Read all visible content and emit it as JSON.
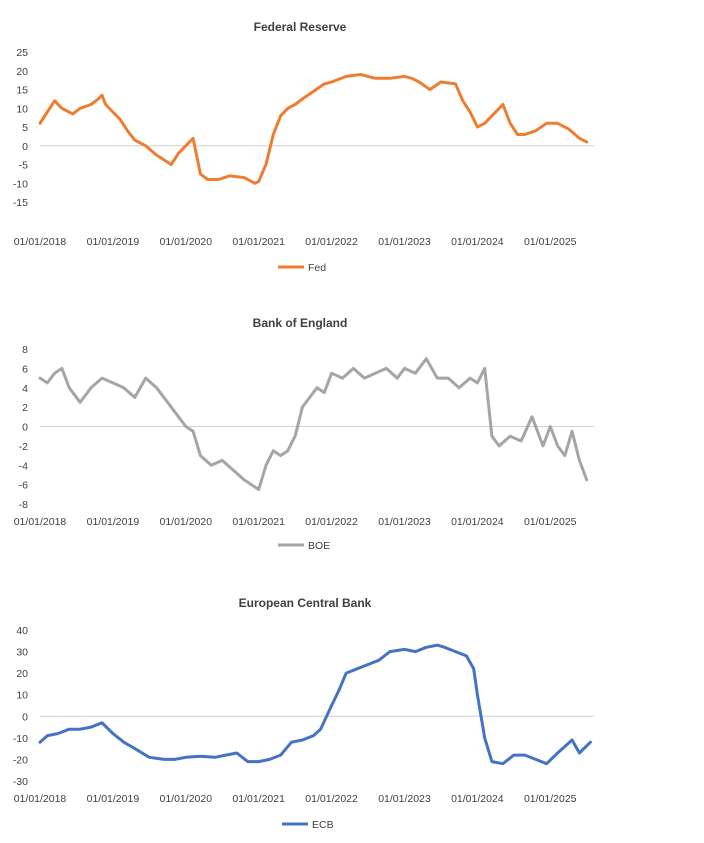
{
  "chart_data": [
    {
      "type": "line",
      "title": "Federal Reserve",
      "xlabel": "",
      "ylabel": "",
      "x_tick_labels": [
        "01/01/2018",
        "01/01/2019",
        "01/01/2020",
        "01/01/2021",
        "01/01/2022",
        "01/01/2023",
        "01/01/2024",
        "01/01/2025"
      ],
      "x_range": [
        2018.0,
        2025.6
      ],
      "ylim": [
        -15,
        25
      ],
      "y_ticks": [
        -15,
        -10,
        -5,
        0,
        5,
        10,
        15,
        20,
        25
      ],
      "grid": false,
      "legend": "bottom-center",
      "series": [
        {
          "name": "Fed",
          "color": "#ED7D31",
          "x": [
            2018.0,
            2018.1,
            2018.2,
            2018.3,
            2018.45,
            2018.55,
            2018.7,
            2018.8,
            2018.85,
            2018.9,
            2019.0,
            2019.1,
            2019.2,
            2019.3,
            2019.45,
            2019.6,
            2019.8,
            2019.9,
            2020.0,
            2020.05,
            2020.1,
            2020.2,
            2020.3,
            2020.45,
            2020.6,
            2020.8,
            2020.95,
            2021.0,
            2021.1,
            2021.2,
            2021.3,
            2021.4,
            2021.5,
            2021.6,
            2021.75,
            2021.9,
            2022.0,
            2022.2,
            2022.4,
            2022.6,
            2022.8,
            2023.0,
            2023.1,
            2023.2,
            2023.35,
            2023.5,
            2023.7,
            2023.8,
            2023.9,
            2024.0,
            2024.1,
            2024.2,
            2024.35,
            2024.45,
            2024.55,
            2024.65,
            2024.8,
            2024.95,
            2025.1,
            2025.25,
            2025.4,
            2025.5
          ],
          "y": [
            6,
            9,
            12,
            10,
            8.5,
            10,
            11,
            12.5,
            13.5,
            11,
            9,
            7,
            4,
            1.5,
            0,
            -2.5,
            -5,
            -2,
            0,
            1,
            2,
            -7.5,
            -9,
            -9,
            -8,
            -8.5,
            -10,
            -9.5,
            -5,
            3,
            8,
            10,
            11,
            12.5,
            14.5,
            16.5,
            17,
            18.5,
            19,
            18,
            18,
            18.5,
            18,
            17,
            15,
            17,
            16.5,
            12,
            9,
            5,
            6,
            8,
            11,
            6,
            3,
            3,
            4,
            6,
            6,
            4.5,
            2,
            1
          ]
        }
      ]
    },
    {
      "type": "line",
      "title": "Bank of England",
      "xlabel": "",
      "ylabel": "",
      "x_tick_labels": [
        "01/01/2018",
        "01/01/2019",
        "01/01/2020",
        "01/01/2021",
        "01/01/2022",
        "01/01/2023",
        "01/01/2024",
        "01/01/2025"
      ],
      "x_range": [
        2018.0,
        2025.6
      ],
      "ylim": [
        -8,
        8
      ],
      "y_ticks": [
        -8,
        -6,
        -4,
        -2,
        0,
        2,
        4,
        6,
        8
      ],
      "grid": false,
      "legend": "bottom-center",
      "series": [
        {
          "name": "BOE",
          "color": "#A5A5A5",
          "x": [
            2018.0,
            2018.1,
            2018.2,
            2018.3,
            2018.4,
            2018.55,
            2018.7,
            2018.85,
            2019.0,
            2019.15,
            2019.3,
            2019.45,
            2019.6,
            2019.75,
            2019.9,
            2020.0,
            2020.1,
            2020.2,
            2020.35,
            2020.5,
            2020.65,
            2020.8,
            2020.9,
            2021.0,
            2021.1,
            2021.2,
            2021.3,
            2021.4,
            2021.5,
            2021.6,
            2021.7,
            2021.8,
            2021.9,
            2022.0,
            2022.15,
            2022.3,
            2022.45,
            2022.6,
            2022.75,
            2022.9,
            2023.0,
            2023.15,
            2023.3,
            2023.45,
            2023.6,
            2023.75,
            2023.9,
            2024.0,
            2024.1,
            2024.2,
            2024.3,
            2024.45,
            2024.6,
            2024.75,
            2024.9,
            2025.0,
            2025.1,
            2025.2,
            2025.3,
            2025.4,
            2025.5
          ],
          "y": [
            5,
            4.5,
            5.5,
            6,
            4,
            2.5,
            4,
            5,
            4.5,
            4,
            3,
            5,
            4,
            2.5,
            1,
            0,
            -0.5,
            -3,
            -4,
            -3.5,
            -4.5,
            -5.5,
            -6,
            -6.5,
            -4,
            -2.5,
            -3,
            -2.5,
            -1,
            2,
            3,
            4,
            3.5,
            5.5,
            5,
            6,
            5,
            5.5,
            6,
            5,
            6,
            5.5,
            7,
            5,
            5,
            4,
            5,
            4.5,
            6,
            -1,
            -2,
            -1,
            -1.5,
            1,
            -2,
            0,
            -2,
            -3,
            -0.5,
            -3.5,
            -5.5
          ]
        }
      ]
    },
    {
      "type": "line",
      "title": "European Central Bank",
      "xlabel": "",
      "ylabel": "",
      "x_tick_labels": [
        "01/01/2018",
        "01/01/2019",
        "01/01/2020",
        "01/01/2021",
        "01/01/2022",
        "01/01/2023",
        "01/01/2024",
        "01/01/2025"
      ],
      "x_range": [
        2018.0,
        2025.6
      ],
      "ylim": [
        -30,
        40
      ],
      "y_ticks": [
        -30,
        -20,
        -10,
        0,
        10,
        20,
        30,
        40
      ],
      "grid": false,
      "legend": "bottom-center",
      "series": [
        {
          "name": "ECB",
          "color": "#4472C4",
          "x": [
            2018.0,
            2018.1,
            2018.25,
            2018.4,
            2018.55,
            2018.7,
            2018.85,
            2019.0,
            2019.15,
            2019.3,
            2019.5,
            2019.7,
            2019.85,
            2020.0,
            2020.2,
            2020.4,
            2020.55,
            2020.7,
            2020.85,
            2021.0,
            2021.15,
            2021.3,
            2021.45,
            2021.6,
            2021.75,
            2021.85,
            2022.0,
            2022.1,
            2022.2,
            2022.35,
            2022.5,
            2022.65,
            2022.8,
            2023.0,
            2023.15,
            2023.3,
            2023.45,
            2023.55,
            2023.7,
            2023.85,
            2023.95,
            2024.0,
            2024.1,
            2024.2,
            2024.35,
            2024.5,
            2024.65,
            2024.8,
            2024.95,
            2025.1,
            2025.2,
            2025.3,
            2025.4,
            2025.55
          ],
          "y": [
            -12,
            -9,
            -8,
            -6,
            -6,
            -5,
            -3,
            -8,
            -12,
            -15,
            -19,
            -20,
            -20,
            -19,
            -18.5,
            -19,
            -18,
            -17,
            -21,
            -21,
            -20,
            -18,
            -12,
            -11,
            -9,
            -6,
            5,
            12,
            20,
            22,
            24,
            26,
            30,
            31,
            30,
            32,
            33,
            32,
            30,
            28,
            22,
            10,
            -10,
            -21,
            -22,
            -18,
            -18,
            -20,
            -22,
            -17,
            -14,
            -11,
            -17,
            -12
          ]
        }
      ]
    }
  ]
}
